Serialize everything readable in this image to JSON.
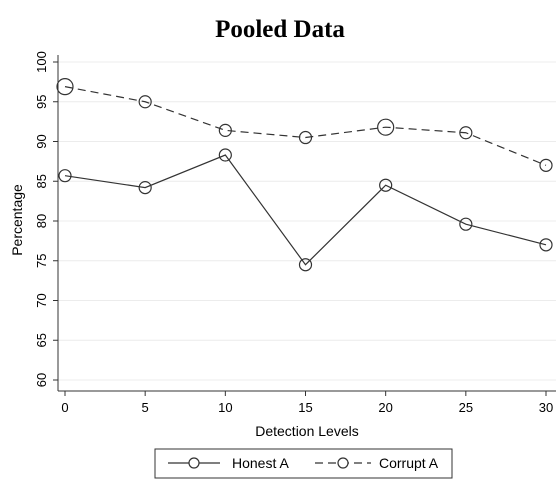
{
  "chart_data": {
    "type": "line",
    "title": "Pooled Data",
    "xlabel": "Detection Levels",
    "ylabel": "Percentage",
    "x": [
      0,
      5,
      10,
      15,
      20,
      25,
      30
    ],
    "xlim": [
      0,
      30
    ],
    "ylim": [
      60,
      100
    ],
    "xticks": [
      "0",
      "5",
      "10",
      "15",
      "20",
      "25",
      "30"
    ],
    "yticks": [
      "60",
      "65",
      "70",
      "75",
      "80",
      "85",
      "90",
      "95",
      "100"
    ],
    "grid": true,
    "legend_position": "bottom",
    "series": [
      {
        "name": "Honest A",
        "values": [
          85.7,
          84.2,
          88.3,
          74.5,
          84.5,
          79.6,
          77.0
        ],
        "line_style": "solid",
        "color": "#333333"
      },
      {
        "name": "Corrupt A",
        "values": [
          96.9,
          95.0,
          91.4,
          90.5,
          91.8,
          91.1,
          87.0
        ],
        "line_style": "dashed",
        "color": "#333333"
      }
    ]
  }
}
